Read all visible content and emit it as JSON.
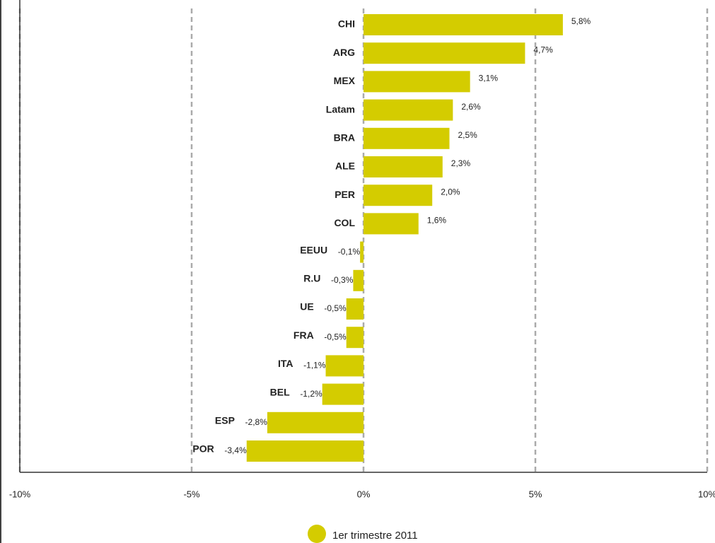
{
  "chart_data": {
    "type": "barh",
    "categories": [
      "CHI",
      "ARG",
      "MEX",
      "Latam",
      "BRA",
      "ALE",
      "PER",
      "COL",
      "EEUU",
      "R.U",
      "UE",
      "FRA",
      "ITA",
      "BEL",
      "ESP",
      "POR"
    ],
    "series": [
      {
        "name": "1er trimestre 2011",
        "color": "#d4cc00",
        "values": [
          5.8,
          4.7,
          3.1,
          2.6,
          2.5,
          2.3,
          2.0,
          1.6,
          -0.1,
          -0.3,
          -0.5,
          -0.5,
          -1.1,
          -1.2,
          -2.8,
          -3.4
        ],
        "value_labels": [
          "5,8%",
          "4,7%",
          "3,1%",
          "2,6%",
          "2,5%",
          "2,3%",
          "2,0%",
          "1,6%",
          "-0,1%",
          "-0,3%",
          "-0,5%",
          "-0,5%",
          "-1,1%",
          "-1,2%",
          "-2,8%",
          "-3,4%"
        ]
      }
    ],
    "xlim": [
      -10,
      10
    ],
    "xticks": [
      {
        "value": -10,
        "label": "-10%"
      },
      {
        "value": -5,
        "label": "-5%"
      },
      {
        "value": 0,
        "label": "0%"
      },
      {
        "value": 5,
        "label": "5%"
      },
      {
        "value": 10,
        "label": "10%"
      }
    ],
    "grid": true
  }
}
